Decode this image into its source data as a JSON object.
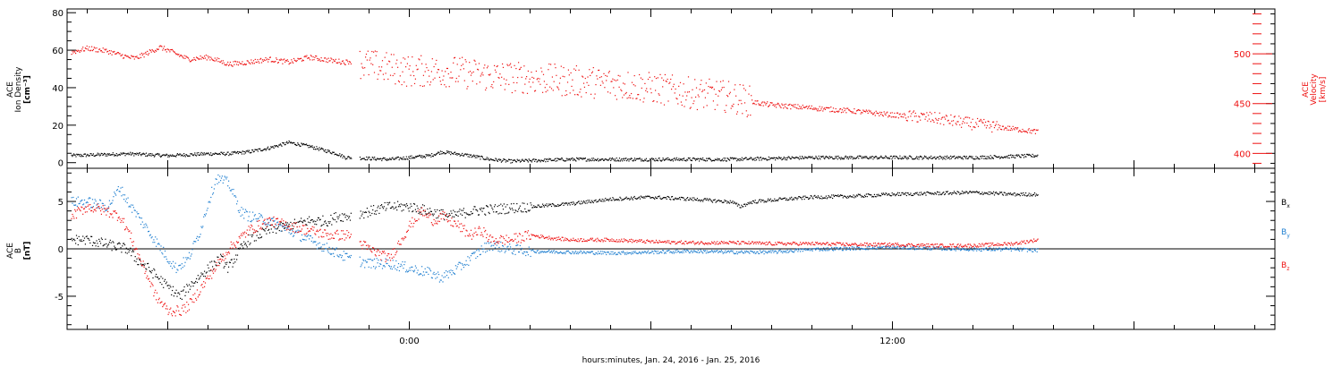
{
  "colors": {
    "black": "#000000",
    "red": "#ee1111",
    "blue": "#1f7fd0",
    "background": "#ffffff"
  },
  "xlabel": "hours:minutes, Jan. 24, 2016 - Jan. 25, 2016",
  "x_ticks": [
    {
      "hour": 0,
      "label": "0:00"
    },
    {
      "hour": 12,
      "label": "12:00"
    }
  ],
  "chart_data": [
    {
      "type": "scatter",
      "panel": "top",
      "xlim_hours": [
        -8.5,
        21.5
      ],
      "ylabel_left": [
        "ACE",
        "Ion Density",
        "[cm⁻³]"
      ],
      "ylim_left": [
        -3,
        82
      ],
      "yticks_left": [
        0,
        20,
        40,
        60,
        80
      ],
      "ylabel_right": [
        "ACE",
        "Velocity",
        "[km/s]"
      ],
      "ylim_right": [
        385,
        545
      ],
      "yticks_right": [
        400,
        450,
        500
      ],
      "data_end_hour": 15.6,
      "series": [
        {
          "axis": "left",
          "color": "black",
          "x": [
            -8.4,
            -7,
            -6,
            -5,
            -4.5,
            -4,
            -3.5,
            -3,
            -2.5,
            -1.8,
            -1.6,
            -1.5,
            -0.5,
            0.5,
            0.8,
            1.5,
            2,
            2.5,
            4,
            6,
            8,
            10,
            12,
            14,
            15.6
          ],
          "y": [
            4,
            5,
            4,
            5,
            5,
            6,
            8,
            11,
            9,
            5,
            3,
            3,
            2,
            4,
            6,
            4,
            2,
            1,
            2,
            2,
            2,
            3,
            3,
            3,
            4
          ]
        },
        {
          "axis": "right",
          "color": "red",
          "x": [
            -8.4,
            -8,
            -7.5,
            -7,
            -6.8,
            -6.2,
            -6,
            -5.5,
            -5,
            -4.5,
            -4,
            -3.5,
            -3,
            -2.5,
            -2,
            -1.8,
            -1.6,
            -1.5,
            -1,
            0,
            1,
            2,
            3,
            4,
            5,
            6,
            7,
            8,
            8.5,
            9,
            10,
            11,
            12,
            13,
            14,
            15,
            15.6
          ],
          "y": [
            502,
            506,
            503,
            497,
            496,
            507,
            504,
            495,
            497,
            490,
            492,
            495,
            492,
            497,
            494,
            493,
            492,
            493,
            489,
            483,
            483,
            478,
            476,
            473,
            471,
            466,
            461,
            457,
            452,
            449,
            446,
            443,
            439,
            436,
            430,
            425,
            422
          ]
        }
      ]
    },
    {
      "type": "scatter",
      "panel": "bottom",
      "xlim_hours": [
        -8.5,
        21.5
      ],
      "ylabel": [
        "ACE",
        "B",
        "[nT]"
      ],
      "ylim": [
        -8.5,
        8.5
      ],
      "yticks": [
        -5,
        0,
        5
      ],
      "zero_line": true,
      "series": [
        {
          "name": "Bx",
          "color": "black",
          "x": [
            -8.4,
            -8,
            -7.5,
            -7,
            -6.8,
            -6.5,
            -6,
            -5.7,
            -5.5,
            -5,
            -4.7,
            -4.5,
            -4.2,
            -4,
            -3.5,
            -3,
            -2.5,
            -2,
            -1.8,
            -1.5,
            -1,
            -0.5,
            0,
            0.5,
            1,
            1.5,
            2,
            3,
            4,
            5,
            6,
            7,
            8,
            8.2,
            8.5,
            9,
            10,
            11,
            12,
            13,
            14,
            15,
            15.6
          ],
          "y": [
            1,
            1,
            0.5,
            0,
            -1,
            -2,
            -4,
            -5,
            -4,
            -2,
            -1,
            -2,
            0,
            1,
            2,
            2.5,
            3,
            3,
            3.5,
            3.5,
            4,
            4.5,
            4.5,
            4,
            3.5,
            4,
            4.2,
            4.5,
            4.8,
            5.3,
            5.5,
            5.3,
            5,
            4.5,
            5,
            5.2,
            5.5,
            5.6,
            5.8,
            5.9,
            6,
            5.8,
            5.8
          ]
        },
        {
          "name": "By",
          "color": "blue",
          "x": [
            -8.4,
            -8,
            -7.5,
            -7.2,
            -7,
            -6.5,
            -6,
            -5.8,
            -5.5,
            -5.2,
            -5,
            -4.8,
            -4.5,
            -4.2,
            -4,
            -3.5,
            -3,
            -2.5,
            -2,
            -1.5,
            -1,
            -0.5,
            0,
            0.5,
            0.8,
            1,
            1.2,
            1.5,
            1.8,
            2,
            2.5,
            3,
            4,
            5,
            6,
            7,
            8,
            9,
            10,
            11,
            12,
            13,
            14,
            15,
            15.6
          ],
          "y": [
            5,
            5,
            4.5,
            6.5,
            5,
            2,
            -1,
            -2,
            -1,
            2,
            5,
            7.5,
            7,
            4,
            3.5,
            3,
            2,
            1,
            0,
            -1,
            -1.5,
            -1.5,
            -2,
            -2.5,
            -3,
            -2.5,
            -2,
            -1,
            0,
            0.5,
            0,
            -0.2,
            -0.3,
            -0.4,
            -0.3,
            -0.2,
            -0.3,
            -0.3,
            0,
            0.1,
            0.2,
            0.1,
            0,
            0,
            -0.1
          ]
        },
        {
          "name": "Bz",
          "color": "red",
          "x": [
            -8.4,
            -8,
            -7.5,
            -7.2,
            -7,
            -6.5,
            -6.3,
            -6,
            -5.7,
            -5.5,
            -5,
            -4.5,
            -4,
            -3.5,
            -3,
            -2.5,
            -2,
            -1.5,
            -1,
            -0.5,
            0,
            0.3,
            0.6,
            0.8,
            1,
            1.2,
            1.5,
            1.8,
            2,
            2.5,
            3,
            3.5,
            4,
            5,
            6,
            7,
            8,
            9,
            10,
            11,
            12,
            13,
            14,
            15,
            15.6
          ],
          "y": [
            3.5,
            4.5,
            4,
            3.5,
            2,
            -3,
            -5,
            -6.5,
            -6.5,
            -6,
            -3,
            0,
            2,
            3,
            2.5,
            2,
            1.5,
            1.5,
            0,
            -1,
            2.5,
            4,
            3,
            3.5,
            3,
            2.5,
            1.5,
            2,
            1,
            1,
            1.5,
            1.2,
            1,
            1,
            0.8,
            0.7,
            0.7,
            0.6,
            0.6,
            0.5,
            0.5,
            0.4,
            0.4,
            0.6,
            1
          ]
        }
      ],
      "legend": [
        {
          "label": "B",
          "sub": "x",
          "color": "black"
        },
        {
          "label": "B",
          "sub": "y",
          "color": "blue"
        },
        {
          "label": "B",
          "sub": "z",
          "color": "red"
        }
      ]
    }
  ]
}
